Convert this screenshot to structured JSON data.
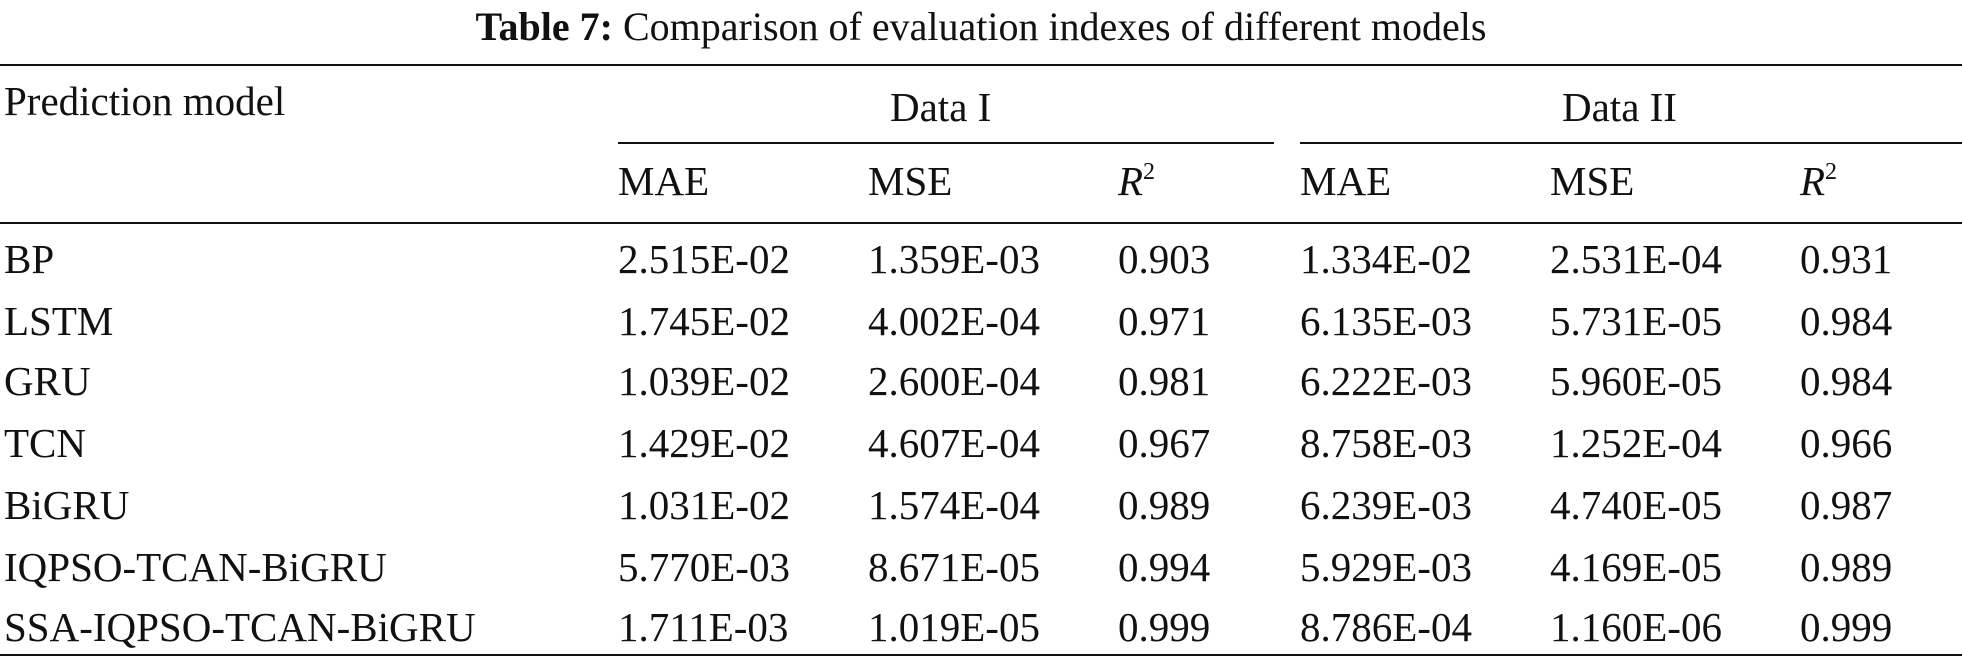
{
  "caption": {
    "label": "Table 7:",
    "text": "Comparison of evaluation indexes of different models"
  },
  "header": {
    "first_column": "Prediction model",
    "groups": [
      "Data I",
      "Data II"
    ],
    "metrics": [
      {
        "name": "MAE",
        "sup": ""
      },
      {
        "name": "MSE",
        "sup": ""
      },
      {
        "name": "R",
        "sup": "2"
      },
      {
        "name": "MAE",
        "sup": ""
      },
      {
        "name": "MSE",
        "sup": ""
      },
      {
        "name": "R",
        "sup": "2"
      }
    ]
  },
  "rows": [
    {
      "model": "BP",
      "values": [
        "2.515E-02",
        "1.359E-03",
        "0.903",
        "1.334E-02",
        "2.531E-04",
        "0.931"
      ]
    },
    {
      "model": "LSTM",
      "values": [
        "1.745E-02",
        "4.002E-04",
        "0.971",
        "6.135E-03",
        "5.731E-05",
        "0.984"
      ]
    },
    {
      "model": "GRU",
      "values": [
        "1.039E-02",
        "2.600E-04",
        "0.981",
        "6.222E-03",
        "5.960E-05",
        "0.984"
      ]
    },
    {
      "model": "TCN",
      "values": [
        "1.429E-02",
        "4.607E-04",
        "0.967",
        "8.758E-03",
        "1.252E-04",
        "0.966"
      ]
    },
    {
      "model": "BiGRU",
      "values": [
        "1.031E-02",
        "1.574E-04",
        "0.989",
        "6.239E-03",
        "4.740E-05",
        "0.987"
      ]
    },
    {
      "model": "IQPSO-TCAN-BiGRU",
      "values": [
        "5.770E-03",
        "8.671E-05",
        "0.994",
        "5.929E-03",
        "4.169E-05",
        "0.989"
      ]
    },
    {
      "model": "SSA-IQPSO-TCAN-BiGRU",
      "values": [
        "1.711E-03",
        "1.019E-05",
        "0.999",
        "8.786E-04",
        "1.160E-06",
        "0.999"
      ]
    }
  ]
}
